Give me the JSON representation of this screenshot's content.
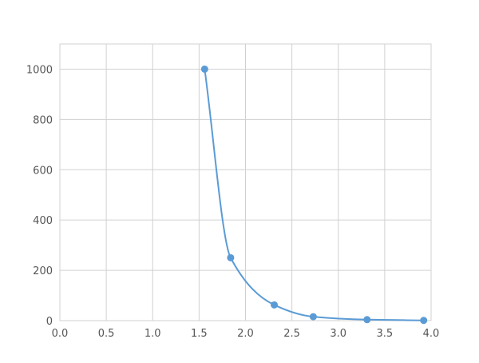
{
  "chart_data": {
    "type": "line",
    "title": "",
    "xlabel": "",
    "ylabel": "",
    "xlim": [
      0,
      4.0
    ],
    "ylim": [
      0,
      1100
    ],
    "xticks": [
      "0.0",
      "0.5",
      "1.0",
      "1.5",
      "2.0",
      "2.5",
      "3.0",
      "3.5",
      "4.0"
    ],
    "yticks": [
      "0",
      "200",
      "400",
      "600",
      "800",
      "1000"
    ],
    "grid": true,
    "legend": "none",
    "series": [
      {
        "x": [
          1.56,
          1.84,
          2.31,
          2.73,
          3.31,
          3.92
        ],
        "y": [
          1000,
          250,
          62.5,
          15.6,
          3.9,
          0.98
        ],
        "color": "#5b9bd5",
        "markers": true,
        "smooth": true
      }
    ]
  }
}
